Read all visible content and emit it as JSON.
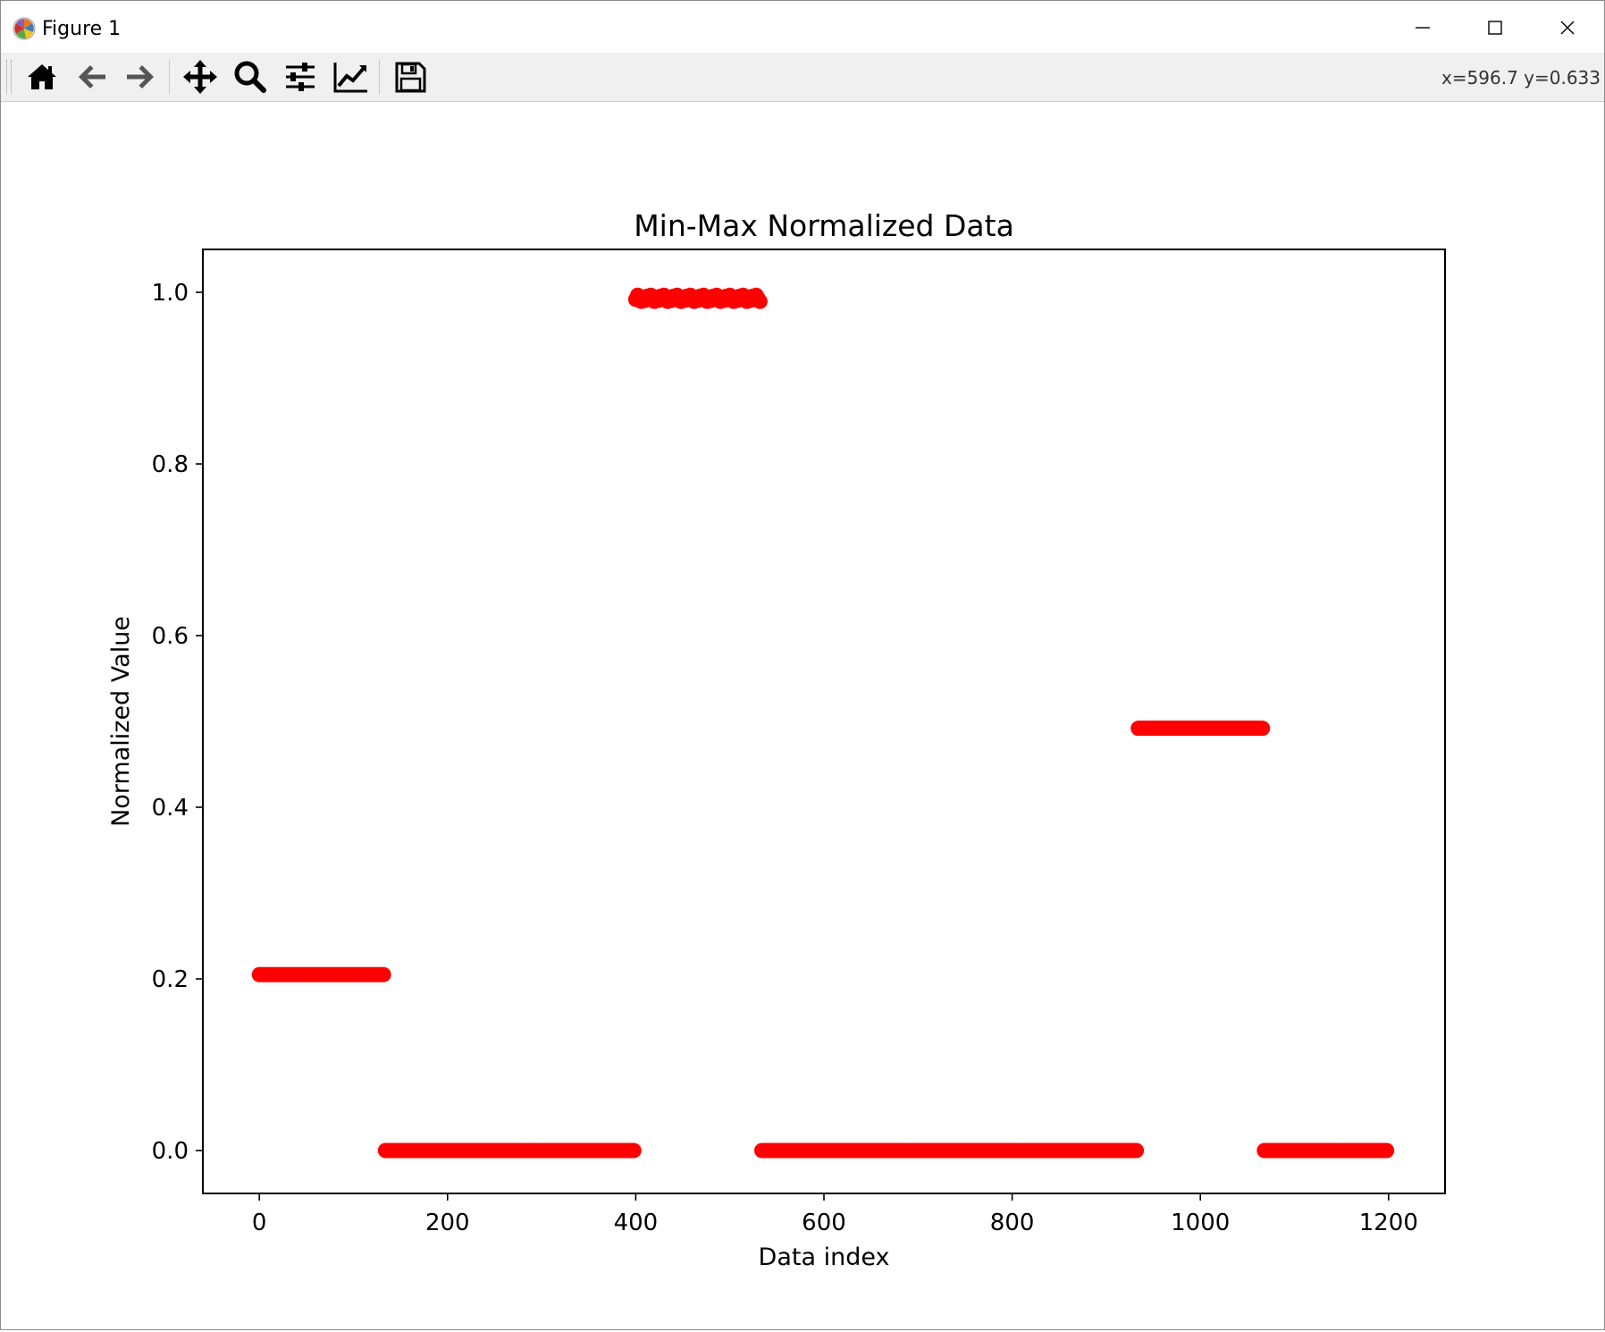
{
  "window": {
    "title": "Figure 1"
  },
  "toolbar": {
    "buttons": [
      {
        "name": "home-button",
        "icon": "home-icon"
      },
      {
        "name": "back-button",
        "icon": "arrow-left-icon"
      },
      {
        "name": "forward-button",
        "icon": "arrow-right-icon"
      },
      {
        "name": "pan-button",
        "icon": "move-icon"
      },
      {
        "name": "zoom-button",
        "icon": "magnifier-icon"
      },
      {
        "name": "configure-subplots-button",
        "icon": "sliders-icon"
      },
      {
        "name": "edit-axis-button",
        "icon": "line-chart-icon"
      },
      {
        "name": "save-button",
        "icon": "floppy-disk-icon"
      }
    ],
    "coords": "x=596.7  y=0.633"
  },
  "chart_data": {
    "type": "scatter",
    "title": "Min-Max Normalized Data",
    "xlabel": "Data index",
    "ylabel": "Normalized Value",
    "xlim": [
      -60,
      1260
    ],
    "ylim": [
      -0.05,
      1.05
    ],
    "xticks": [
      0,
      200,
      400,
      600,
      800,
      1000,
      1200
    ],
    "xtick_labels": [
      "0",
      "200",
      "400",
      "600",
      "800",
      "1000",
      "1200"
    ],
    "yticks": [
      0.0,
      0.2,
      0.4,
      0.6,
      0.8,
      1.0
    ],
    "ytick_labels": [
      "0.0",
      "0.2",
      "0.4",
      "0.6",
      "0.8",
      "1.0"
    ],
    "grid": false,
    "marker_color": "#ff0000",
    "series": [
      {
        "segments": [
          {
            "x_start": 0,
            "x_end": 134,
            "y": 0.205
          },
          {
            "x_start": 134,
            "x_end": 400,
            "y": 0.0
          },
          {
            "x_start": 400,
            "x_end": 534,
            "y": 0.993
          },
          {
            "x_start": 534,
            "x_end": 934,
            "y": 0.0
          },
          {
            "x_start": 934,
            "x_end": 1068,
            "y": 0.492
          },
          {
            "x_start": 1068,
            "x_end": 1200,
            "y": 0.0
          }
        ]
      }
    ]
  }
}
